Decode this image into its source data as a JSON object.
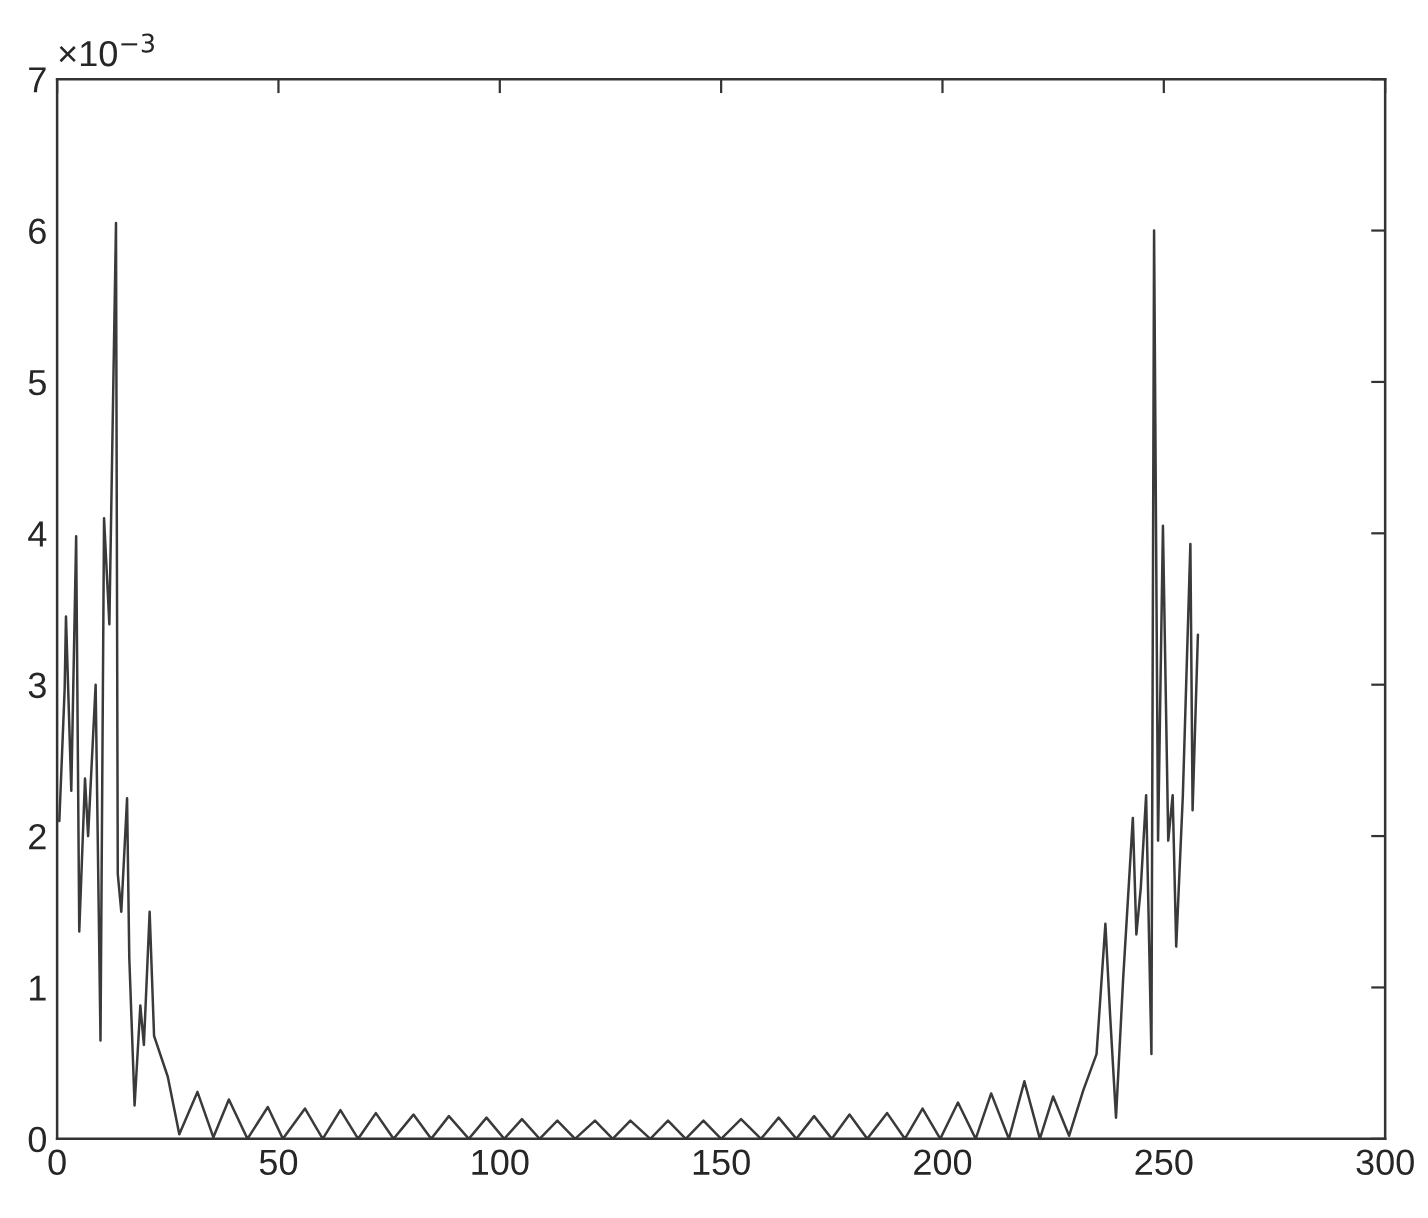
{
  "chart_data": {
    "type": "line",
    "annotations": [
      "×10$^{−3}$"
    ],
    "xlim": [
      0,
      300
    ],
    "xticks": [
      0,
      50,
      100,
      150,
      200,
      250,
      300
    ],
    "ylim": [
      0,
      7
    ],
    "yticks": [
      0,
      1,
      2,
      3,
      4,
      5,
      6,
      7
    ],
    "grid": false,
    "marker": "none",
    "line_style": "solid",
    "series": [
      {
        "color": "#3a3a3a",
        "x": [
          0.5,
          1.7,
          2,
          3.2,
          4.3,
          5,
          6.3,
          7,
          8.7,
          9.8,
          10.6,
          11.8,
          13.3,
          13.7,
          14.5,
          15.8,
          16.3,
          17.5,
          18.8,
          19.6,
          20.9,
          21.9,
          25,
          27.6,
          31.7,
          35.3,
          38.8,
          43,
          47.6,
          51,
          56,
          60,
          64,
          68,
          72,
          76,
          80.5,
          84.5,
          88.5,
          93,
          97,
          101,
          105,
          109,
          113,
          117,
          121.5,
          125.5,
          129.5,
          134,
          138,
          142,
          146,
          150,
          154.5,
          159,
          163,
          167,
          171,
          175,
          179,
          183,
          187.5,
          191.5,
          195.5,
          199.5,
          203.5,
          207.5,
          211,
          215,
          218.5,
          222,
          225,
          228.6,
          231.8,
          234.8,
          236.8,
          237.9,
          239.2,
          240.8,
          243,
          243.8,
          244.8,
          246,
          247.2,
          247.8,
          248.7,
          249.8,
          251,
          252,
          252.8,
          254.3,
          256,
          256.5,
          257.7
        ],
        "values": [
          2.1,
          2.97,
          3.45,
          2.3,
          3.98,
          1.37,
          2.38,
          2.0,
          3.0,
          0.65,
          4.1,
          3.4,
          6.05,
          1.75,
          1.5,
          2.25,
          1.2,
          0.22,
          0.88,
          0.62,
          1.5,
          0.68,
          0.41,
          0.03,
          0.31,
          0.01,
          0.26,
          0.0,
          0.21,
          0.0,
          0.2,
          0.0,
          0.19,
          0.0,
          0.17,
          0.0,
          0.16,
          0.0,
          0.15,
          0.0,
          0.14,
          0.0,
          0.13,
          0.0,
          0.12,
          0.0,
          0.12,
          0.0,
          0.12,
          0.0,
          0.12,
          0.0,
          0.12,
          0.0,
          0.13,
          0.0,
          0.14,
          0.0,
          0.15,
          0.0,
          0.16,
          0.0,
          0.17,
          0.0,
          0.2,
          0.0,
          0.24,
          0.0,
          0.3,
          0.0,
          0.38,
          0.0,
          0.28,
          0.02,
          0.32,
          0.56,
          1.42,
          0.8,
          0.14,
          1.05,
          2.12,
          1.35,
          1.66,
          2.27,
          0.56,
          6.0,
          1.97,
          4.05,
          1.97,
          2.27,
          1.27,
          2.27,
          3.93,
          2.17,
          3.33
        ]
      }
    ]
  }
}
